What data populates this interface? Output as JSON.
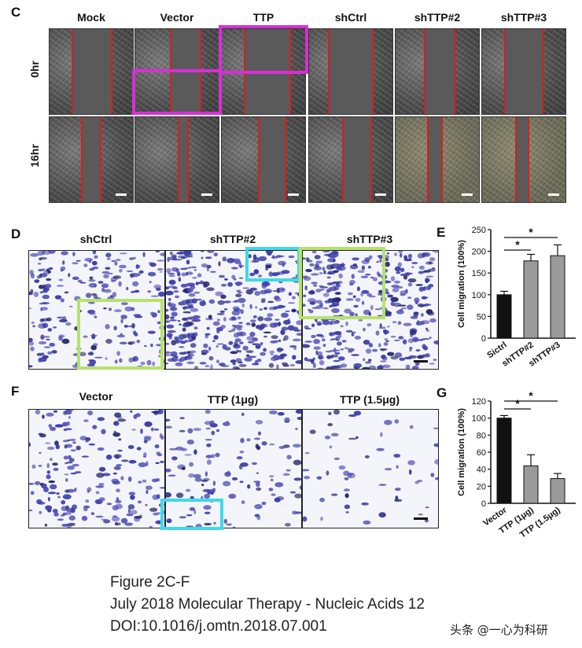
{
  "panel_c": {
    "letter": "C",
    "columns": [
      "Mock",
      "Vector",
      "TTP",
      "shCtrl",
      "shTTP#2",
      "shTTP#3"
    ],
    "rows": [
      "0hr",
      "16hr"
    ]
  },
  "panel_d": {
    "letter": "D",
    "columns": [
      "shCtrl",
      "shTTP#2",
      "shTTP#3"
    ]
  },
  "panel_f": {
    "letter": "F",
    "columns": [
      "Vector",
      "TTP (1μg)",
      "TTP (1.5μg)"
    ]
  },
  "chart_data": [
    {
      "panel": "E",
      "type": "bar",
      "categories": [
        "Sictrl",
        "shTTP#2",
        "shTTP#3"
      ],
      "values": [
        100,
        178,
        190
      ],
      "errors": [
        8,
        15,
        25
      ],
      "bar_colors": [
        "#111111",
        "#9a9a9a",
        "#9a9a9a"
      ],
      "ylabel": "Cell migration (100%)",
      "ylim": [
        0,
        250
      ],
      "yticks": [
        0,
        50,
        100,
        150,
        200,
        250
      ],
      "significance": [
        {
          "from": 0,
          "to": 1,
          "label": "*"
        },
        {
          "from": 0,
          "to": 2,
          "label": "*"
        }
      ]
    },
    {
      "panel": "G",
      "type": "bar",
      "categories": [
        "Vector",
        "TTP (1μg)",
        "TTP (1.5μg)"
      ],
      "values": [
        100,
        44,
        29
      ],
      "errors": [
        3,
        13,
        6
      ],
      "bar_colors": [
        "#111111",
        "#9a9a9a",
        "#9a9a9a"
      ],
      "ylabel": "Cell migration (100%)",
      "ylim": [
        0,
        120
      ],
      "yticks": [
        0,
        20,
        40,
        60,
        80,
        100,
        120
      ],
      "significance": [
        {
          "from": 0,
          "to": 1,
          "label": "*"
        },
        {
          "from": 0,
          "to": 2,
          "label": "*"
        }
      ]
    }
  ],
  "caption": {
    "line1": "Figure 2C-F",
    "line2": "July 2018 Molecular Therapy - Nucleic Acids 12",
    "line3": "DOI:10.1016/j.omtn.2018.07.001"
  },
  "watermark": "头条 @一心为科研"
}
